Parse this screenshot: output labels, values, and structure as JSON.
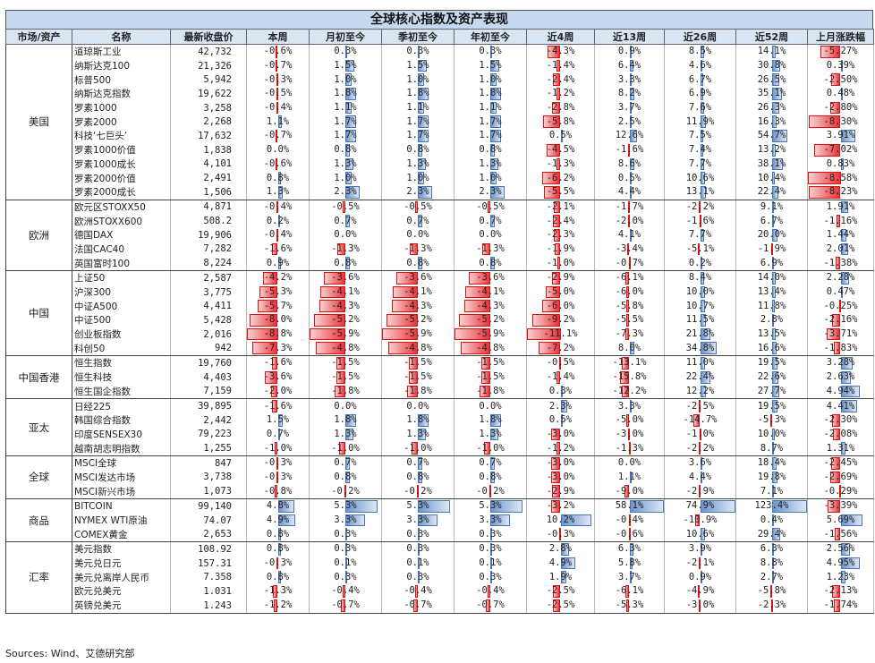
{
  "title": "全球核心指数及资产表现",
  "source": "Sources: Wind、艾德研究部",
  "chart_data": {
    "type": "table",
    "columns": [
      "市场/资产",
      "名称",
      "最新收盘价",
      "本周",
      "月初至今",
      "季初至今",
      "年初至今",
      "近4周",
      "近13周",
      "近26周",
      "近52周",
      "上月涨跌幅"
    ],
    "groups": [
      {
        "region": "美国",
        "rows": [
          [
            "道琼斯工业",
            "42,732",
            -0.6,
            0.3,
            0.3,
            0.3,
            -4.3,
            0.9,
            8.5,
            14.1,
            -5.27
          ],
          [
            "纳斯达克100",
            "21,326",
            -0.7,
            1.5,
            1.5,
            1.5,
            -1.4,
            6.4,
            4.6,
            30.8,
            0.39
          ],
          [
            "标普500",
            "5,942",
            -0.3,
            1.0,
            1.0,
            1.0,
            -2.4,
            3.3,
            6.7,
            26.5,
            -2.5
          ],
          [
            "纳斯达克指数",
            "19,622",
            -0.5,
            1.8,
            1.8,
            1.8,
            -1.2,
            8.2,
            6.9,
            35.1,
            0.48
          ],
          [
            "罗素1000",
            "3,258",
            -0.4,
            1.1,
            1.1,
            1.1,
            -2.8,
            3.7,
            7.6,
            26.3,
            -2.8
          ],
          [
            "罗素2000",
            "2,268",
            1.1,
            1.7,
            1.7,
            1.7,
            -5.8,
            2.5,
            11.9,
            16.3,
            -8.3
          ],
          [
            "科技‘七巨头’",
            "17,632",
            -0.7,
            1.7,
            1.7,
            1.7,
            0.5,
            12.6,
            7.5,
            54.7,
            3.91
          ],
          [
            "罗素1000价值",
            "1,838",
            0.0,
            0.8,
            0.8,
            0.8,
            -4.5,
            -1.6,
            7.4,
            13.2,
            -7.02
          ],
          [
            "罗素1000成长",
            "4,101",
            -0.6,
            1.3,
            1.3,
            1.3,
            -1.3,
            8.6,
            7.7,
            38.1,
            0.83
          ],
          [
            "罗素2000价值",
            "2,491",
            0.8,
            1.0,
            1.0,
            1.0,
            -6.2,
            0.5,
            10.6,
            10.4,
            -8.58
          ],
          [
            "罗素2000成长",
            "1,506",
            1.3,
            2.3,
            2.3,
            2.3,
            -5.5,
            4.4,
            13.1,
            22.4,
            -8.23
          ]
        ]
      },
      {
        "region": "欧洲",
        "rows": [
          [
            "欧元区STOXX50",
            "4,871",
            -0.4,
            -0.5,
            -0.5,
            -0.5,
            -2.1,
            -1.7,
            -2.2,
            9.1,
            1.91
          ],
          [
            "欧洲STOXX600",
            "508.2",
            0.2,
            0.7,
            0.7,
            0.7,
            -2.4,
            -2.0,
            -1.6,
            6.7,
            -1.16
          ],
          [
            "德国DAX",
            "19,906",
            -0.4,
            0.0,
            0.0,
            0.0,
            -2.3,
            4.1,
            7.7,
            20.0,
            1.44
          ],
          [
            "法国CAC40",
            "7,282",
            -1.6,
            -1.3,
            -1.3,
            -1.3,
            -1.9,
            -3.4,
            -5.1,
            -1.9,
            2.01
          ],
          [
            "英国富时100",
            "8,224",
            0.9,
            0.8,
            0.8,
            0.8,
            -1.0,
            -0.7,
            0.2,
            6.9,
            -1.38
          ]
        ]
      },
      {
        "region": "中国",
        "rows": [
          [
            "上证50",
            "2,587",
            -4.2,
            -3.6,
            -3.6,
            -3.6,
            -2.9,
            -6.1,
            8.4,
            14.0,
            2.28
          ],
          [
            "沪深300",
            "3,775",
            -5.3,
            -4.1,
            -4.1,
            -4.1,
            -5.0,
            -6.0,
            10.0,
            13.4,
            0.47
          ],
          [
            "中证A500",
            "4,411",
            -5.7,
            -4.3,
            -4.3,
            -4.3,
            -6.0,
            -5.8,
            10.7,
            11.8,
            -0.25
          ],
          [
            "中证500",
            "5,428",
            -8.0,
            -5.2,
            -5.2,
            -5.2,
            -9.2,
            -5.5,
            11.5,
            2.8,
            -2.16
          ],
          [
            "创业板指数",
            "2,016",
            -8.8,
            -5.9,
            -5.9,
            -5.9,
            -11.1,
            -7.3,
            21.8,
            13.5,
            -3.71
          ],
          [
            "科创50",
            "942",
            -7.3,
            -4.8,
            -4.8,
            -4.8,
            -7.2,
            8.0,
            34.8,
            16.6,
            -1.83
          ]
        ]
      },
      {
        "region": "中国香港",
        "rows": [
          [
            "恒生指数",
            "19,760",
            -1.6,
            -1.5,
            -1.5,
            -1.5,
            -0.5,
            -13.1,
            11.0,
            19.5,
            3.28
          ],
          [
            "恒生科技",
            "4,403",
            -3.6,
            -1.5,
            -1.5,
            -1.5,
            -1.4,
            -15.8,
            22.4,
            22.6,
            2.63
          ],
          [
            "恒生国企指数",
            "7,159",
            -2.0,
            -1.8,
            -1.8,
            -1.8,
            0.3,
            -12.2,
            12.2,
            27.7,
            4.94
          ]
        ]
      },
      {
        "region": "亚太",
        "rows": [
          [
            "日经225",
            "39,895",
            -1.6,
            0.0,
            0.0,
            0.0,
            2.3,
            3.3,
            -2.5,
            19.5,
            4.41
          ],
          [
            "韩国综合指数",
            "2,442",
            1.5,
            1.8,
            1.8,
            1.8,
            0.5,
            -5.0,
            -14.7,
            -5.3,
            -2.3
          ],
          [
            "印度SENSEX30",
            "79,223",
            0.7,
            1.3,
            1.3,
            1.3,
            -3.0,
            -3.0,
            -1.0,
            10.0,
            -2.08
          ],
          [
            "越南胡志明指数",
            "1,255",
            -1.0,
            -1.0,
            -1.0,
            -1.0,
            -1.2,
            -1.3,
            -2.2,
            8.7,
            1.31
          ]
        ]
      },
      {
        "region": "全球",
        "rows": [
          [
            "MSCI全球",
            "847",
            -0.3,
            0.7,
            0.7,
            0.7,
            -3.0,
            0.0,
            3.6,
            18.4,
            -2.45
          ],
          [
            "MSCI发达市场",
            "3,738",
            -0.3,
            0.8,
            0.8,
            0.8,
            -3.0,
            1.1,
            4.4,
            19.8,
            -2.69
          ],
          [
            "MSCI新兴市场",
            "1,073",
            -0.8,
            -0.2,
            -0.2,
            -0.2,
            -2.9,
            -9.0,
            -2.9,
            7.1,
            -0.29
          ]
        ]
      },
      {
        "region": "商品",
        "rows": [
          [
            "BITCOIN",
            "99,140",
            4.8,
            5.3,
            5.3,
            5.3,
            -3.2,
            58.1,
            74.9,
            123.4,
            -3.39
          ],
          [
            "NYMEX WTI原油",
            "74.07",
            4.9,
            3.3,
            3.3,
            3.3,
            10.2,
            -0.4,
            -10.9,
            0.4,
            5.69
          ],
          [
            "COMEX黄金",
            "2,653",
            0.8,
            0.3,
            0.3,
            0.3,
            -0.3,
            -0.6,
            10.6,
            29.4,
            -1.56
          ]
        ]
      },
      {
        "region": "汇率",
        "rows": [
          [
            "美元指数",
            "108.92",
            0.8,
            0.3,
            0.3,
            0.3,
            2.8,
            6.3,
            3.9,
            6.3,
            2.56
          ],
          [
            "美元兑日元",
            "157.31",
            -0.3,
            0.1,
            0.1,
            0.1,
            4.9,
            5.8,
            -2.1,
            8.8,
            4.95
          ],
          [
            "美元兑离岸人民币",
            "7.358",
            0.8,
            0.3,
            0.3,
            0.3,
            1.9,
            3.7,
            0.9,
            2.7,
            1.23
          ],
          [
            "欧元兑美元",
            "1.031",
            -1.3,
            -0.4,
            -0.4,
            -0.4,
            -2.5,
            -6.1,
            -4.9,
            -5.8,
            -2.13
          ],
          [
            "英镑兑美元",
            "1.243",
            -1.2,
            -0.7,
            -0.7,
            -0.7,
            -2.5,
            -5.3,
            -3.0,
            -2.3,
            -1.74
          ]
        ]
      }
    ],
    "column_decimals": [
      1,
      1,
      1,
      1,
      1,
      1,
      1,
      1,
      2
    ]
  }
}
